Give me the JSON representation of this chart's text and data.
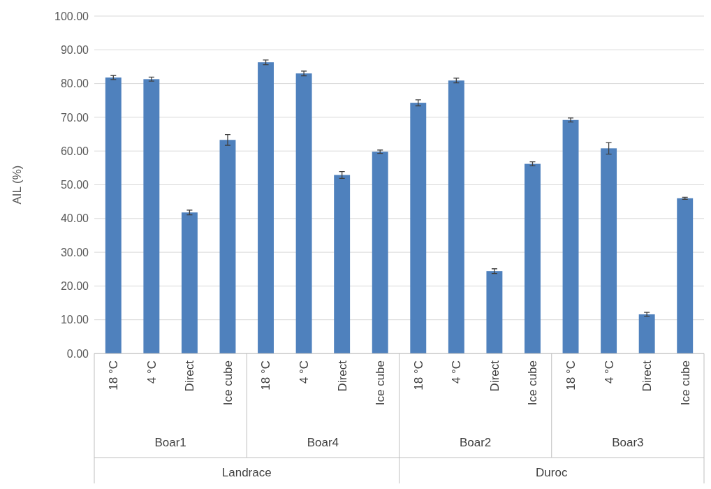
{
  "chart_data": {
    "type": "bar",
    "ylabel": "AIL (%)",
    "categories": [
      "18 °C",
      "4 °C",
      "Direct",
      "Ice cube",
      "18 °C",
      "4 °C",
      "Direct",
      "Ice cube",
      "18 °C",
      "4 °C",
      "Direct",
      "Ice cube",
      "18 °C",
      "4 °C",
      "Direct",
      "Ice cube"
    ],
    "values": [
      81.8,
      81.3,
      41.8,
      63.3,
      86.3,
      83.0,
      52.9,
      59.8,
      74.3,
      80.9,
      24.4,
      56.2,
      69.2,
      60.8,
      11.6,
      46.0
    ],
    "errors": [
      0.6,
      0.6,
      0.7,
      1.6,
      0.7,
      0.7,
      1.0,
      0.5,
      0.9,
      0.7,
      0.7,
      0.6,
      0.6,
      1.7,
      0.6,
      0.3
    ],
    "color": "#4f81bd",
    "ylim": [
      0,
      100
    ],
    "yticks": [
      {
        "value": 0,
        "label": "0.00"
      },
      {
        "value": 10,
        "label": "10.00"
      },
      {
        "value": 20,
        "label": "20.00"
      },
      {
        "value": 30,
        "label": "30.00"
      },
      {
        "value": 40,
        "label": "40.00"
      },
      {
        "value": 50,
        "label": "50.00"
      },
      {
        "value": 60,
        "label": "60.00"
      },
      {
        "value": 70,
        "label": "70.00"
      },
      {
        "value": 80,
        "label": "80.00"
      },
      {
        "value": 90,
        "label": "90.00"
      },
      {
        "value": 100,
        "label": "100.00"
      }
    ],
    "grid": "y",
    "annotations": [
      "Boar1",
      "Boar4",
      "Boar2",
      "Boar3",
      "Landrace",
      "Duroc"
    ]
  }
}
